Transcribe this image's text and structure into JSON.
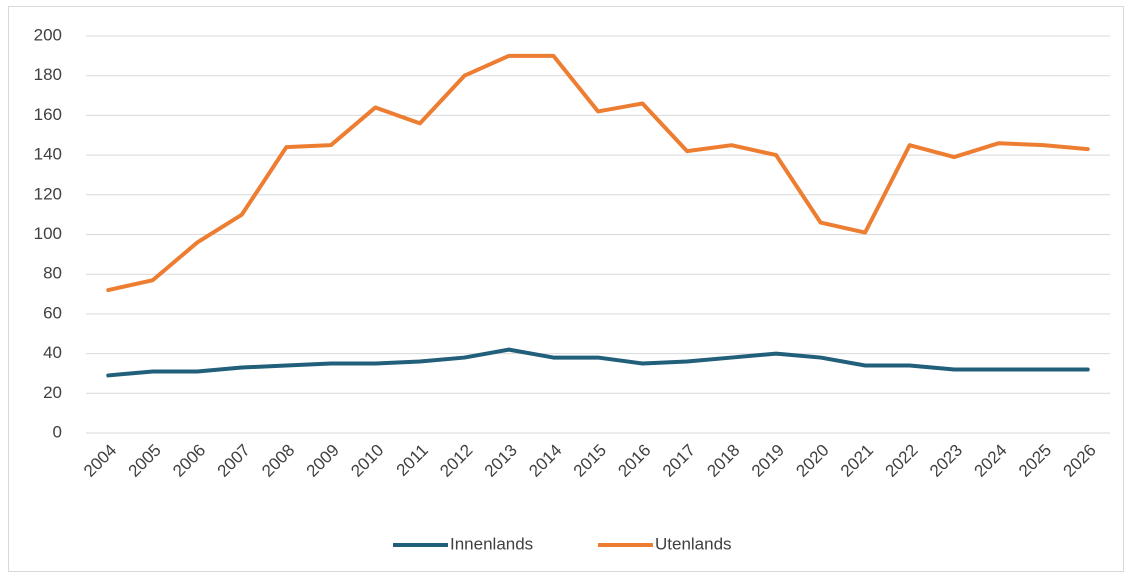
{
  "chart_data": {
    "type": "line",
    "categories": [
      "2004",
      "2005",
      "2006",
      "2007",
      "2008",
      "2009",
      "2010",
      "2011",
      "2012",
      "2013",
      "2014",
      "2015",
      "2016",
      "2017",
      "2018",
      "2019",
      "2020",
      "2021",
      "2022",
      "2023",
      "2024",
      "2025",
      "2026"
    ],
    "series": [
      {
        "name": "Innenlands",
        "color": "#215f7a",
        "values": [
          29,
          31,
          31,
          33,
          34,
          35,
          35,
          36,
          38,
          42,
          38,
          38,
          35,
          36,
          38,
          40,
          38,
          34,
          34,
          32,
          32,
          32,
          32
        ]
      },
      {
        "name": "Utenlands",
        "color": "#ed7d31",
        "values": [
          72,
          77,
          96,
          110,
          144,
          145,
          164,
          156,
          180,
          190,
          190,
          162,
          166,
          142,
          145,
          140,
          106,
          101,
          145,
          139,
          146,
          145,
          143
        ]
      }
    ],
    "ylim": [
      0,
      200
    ],
    "yticks": [
      0,
      20,
      40,
      60,
      80,
      100,
      120,
      140,
      160,
      180,
      200
    ],
    "grid": true,
    "legend": "bottom"
  }
}
